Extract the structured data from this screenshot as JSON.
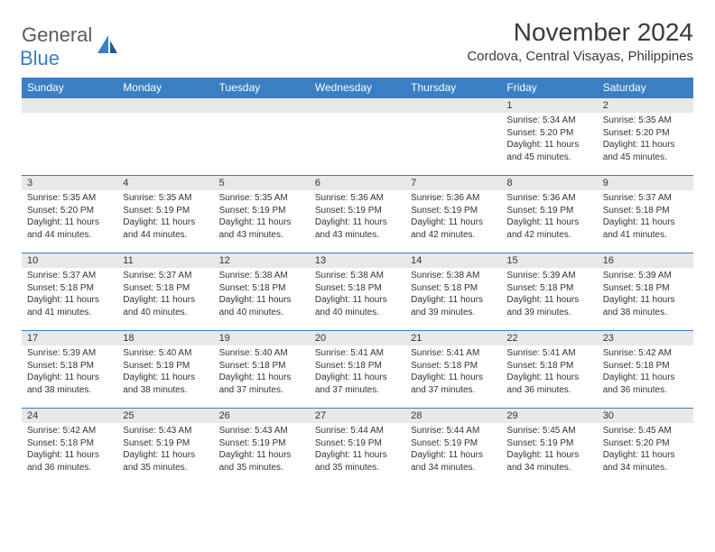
{
  "logo": {
    "text1": "General",
    "text2": "Blue"
  },
  "title": "November 2024",
  "location": "Cordova, Central Visayas, Philippines",
  "colors": {
    "header_bg": "#3a7fc4",
    "header_text": "#ffffff",
    "daynum_bg": "#e8e8e8",
    "border": "#3a7fc4",
    "logo_gray": "#5a5a5a",
    "logo_blue": "#3a7fc4"
  },
  "weekdays": [
    "Sunday",
    "Monday",
    "Tuesday",
    "Wednesday",
    "Thursday",
    "Friday",
    "Saturday"
  ],
  "weeks": [
    [
      null,
      null,
      null,
      null,
      null,
      {
        "n": "1",
        "sr": "Sunrise: 5:34 AM",
        "ss": "Sunset: 5:20 PM",
        "dl": "Daylight: 11 hours and 45 minutes."
      },
      {
        "n": "2",
        "sr": "Sunrise: 5:35 AM",
        "ss": "Sunset: 5:20 PM",
        "dl": "Daylight: 11 hours and 45 minutes."
      }
    ],
    [
      {
        "n": "3",
        "sr": "Sunrise: 5:35 AM",
        "ss": "Sunset: 5:20 PM",
        "dl": "Daylight: 11 hours and 44 minutes."
      },
      {
        "n": "4",
        "sr": "Sunrise: 5:35 AM",
        "ss": "Sunset: 5:19 PM",
        "dl": "Daylight: 11 hours and 44 minutes."
      },
      {
        "n": "5",
        "sr": "Sunrise: 5:35 AM",
        "ss": "Sunset: 5:19 PM",
        "dl": "Daylight: 11 hours and 43 minutes."
      },
      {
        "n": "6",
        "sr": "Sunrise: 5:36 AM",
        "ss": "Sunset: 5:19 PM",
        "dl": "Daylight: 11 hours and 43 minutes."
      },
      {
        "n": "7",
        "sr": "Sunrise: 5:36 AM",
        "ss": "Sunset: 5:19 PM",
        "dl": "Daylight: 11 hours and 42 minutes."
      },
      {
        "n": "8",
        "sr": "Sunrise: 5:36 AM",
        "ss": "Sunset: 5:19 PM",
        "dl": "Daylight: 11 hours and 42 minutes."
      },
      {
        "n": "9",
        "sr": "Sunrise: 5:37 AM",
        "ss": "Sunset: 5:18 PM",
        "dl": "Daylight: 11 hours and 41 minutes."
      }
    ],
    [
      {
        "n": "10",
        "sr": "Sunrise: 5:37 AM",
        "ss": "Sunset: 5:18 PM",
        "dl": "Daylight: 11 hours and 41 minutes."
      },
      {
        "n": "11",
        "sr": "Sunrise: 5:37 AM",
        "ss": "Sunset: 5:18 PM",
        "dl": "Daylight: 11 hours and 40 minutes."
      },
      {
        "n": "12",
        "sr": "Sunrise: 5:38 AM",
        "ss": "Sunset: 5:18 PM",
        "dl": "Daylight: 11 hours and 40 minutes."
      },
      {
        "n": "13",
        "sr": "Sunrise: 5:38 AM",
        "ss": "Sunset: 5:18 PM",
        "dl": "Daylight: 11 hours and 40 minutes."
      },
      {
        "n": "14",
        "sr": "Sunrise: 5:38 AM",
        "ss": "Sunset: 5:18 PM",
        "dl": "Daylight: 11 hours and 39 minutes."
      },
      {
        "n": "15",
        "sr": "Sunrise: 5:39 AM",
        "ss": "Sunset: 5:18 PM",
        "dl": "Daylight: 11 hours and 39 minutes."
      },
      {
        "n": "16",
        "sr": "Sunrise: 5:39 AM",
        "ss": "Sunset: 5:18 PM",
        "dl": "Daylight: 11 hours and 38 minutes."
      }
    ],
    [
      {
        "n": "17",
        "sr": "Sunrise: 5:39 AM",
        "ss": "Sunset: 5:18 PM",
        "dl": "Daylight: 11 hours and 38 minutes."
      },
      {
        "n": "18",
        "sr": "Sunrise: 5:40 AM",
        "ss": "Sunset: 5:18 PM",
        "dl": "Daylight: 11 hours and 38 minutes."
      },
      {
        "n": "19",
        "sr": "Sunrise: 5:40 AM",
        "ss": "Sunset: 5:18 PM",
        "dl": "Daylight: 11 hours and 37 minutes."
      },
      {
        "n": "20",
        "sr": "Sunrise: 5:41 AM",
        "ss": "Sunset: 5:18 PM",
        "dl": "Daylight: 11 hours and 37 minutes."
      },
      {
        "n": "21",
        "sr": "Sunrise: 5:41 AM",
        "ss": "Sunset: 5:18 PM",
        "dl": "Daylight: 11 hours and 37 minutes."
      },
      {
        "n": "22",
        "sr": "Sunrise: 5:41 AM",
        "ss": "Sunset: 5:18 PM",
        "dl": "Daylight: 11 hours and 36 minutes."
      },
      {
        "n": "23",
        "sr": "Sunrise: 5:42 AM",
        "ss": "Sunset: 5:18 PM",
        "dl": "Daylight: 11 hours and 36 minutes."
      }
    ],
    [
      {
        "n": "24",
        "sr": "Sunrise: 5:42 AM",
        "ss": "Sunset: 5:18 PM",
        "dl": "Daylight: 11 hours and 36 minutes."
      },
      {
        "n": "25",
        "sr": "Sunrise: 5:43 AM",
        "ss": "Sunset: 5:19 PM",
        "dl": "Daylight: 11 hours and 35 minutes."
      },
      {
        "n": "26",
        "sr": "Sunrise: 5:43 AM",
        "ss": "Sunset: 5:19 PM",
        "dl": "Daylight: 11 hours and 35 minutes."
      },
      {
        "n": "27",
        "sr": "Sunrise: 5:44 AM",
        "ss": "Sunset: 5:19 PM",
        "dl": "Daylight: 11 hours and 35 minutes."
      },
      {
        "n": "28",
        "sr": "Sunrise: 5:44 AM",
        "ss": "Sunset: 5:19 PM",
        "dl": "Daylight: 11 hours and 34 minutes."
      },
      {
        "n": "29",
        "sr": "Sunrise: 5:45 AM",
        "ss": "Sunset: 5:19 PM",
        "dl": "Daylight: 11 hours and 34 minutes."
      },
      {
        "n": "30",
        "sr": "Sunrise: 5:45 AM",
        "ss": "Sunset: 5:20 PM",
        "dl": "Daylight: 11 hours and 34 minutes."
      }
    ]
  ]
}
